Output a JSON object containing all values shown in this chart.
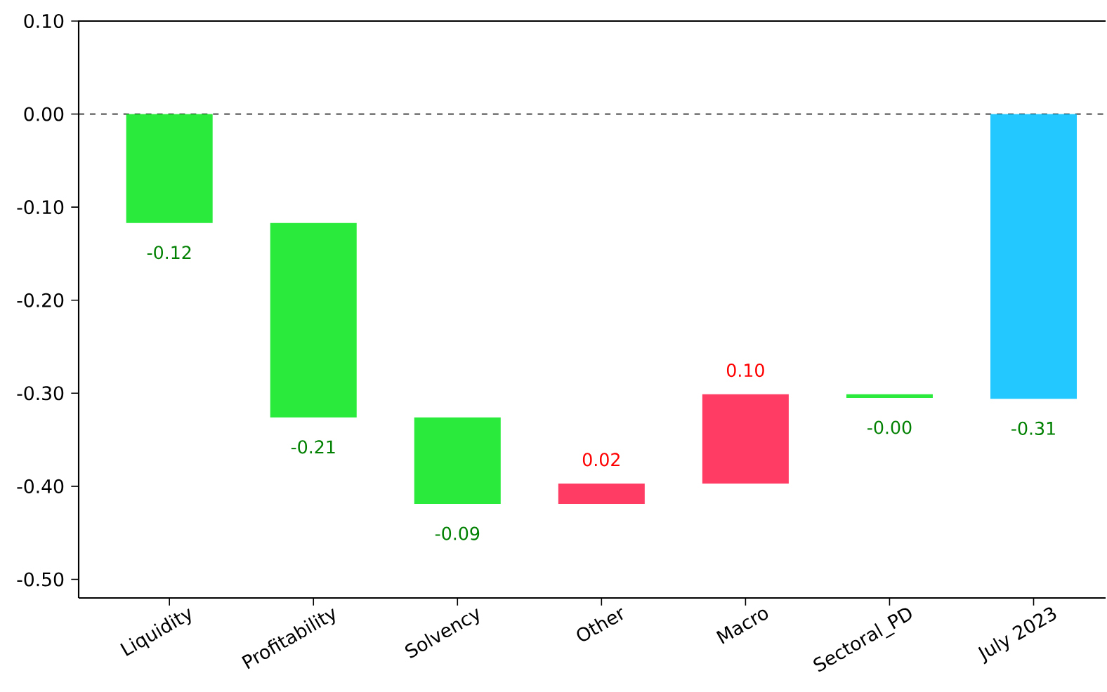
{
  "chart_data": {
    "type": "bar",
    "categories": [
      "Liquidity",
      "Profitability",
      "Solvency",
      "Other",
      "Macro",
      "Sectoral_PD",
      "July 2023"
    ],
    "values": [
      -0.117,
      -0.209,
      -0.093,
      0.022,
      0.096,
      -0.004,
      -0.306
    ],
    "base": [
      0,
      -0.117,
      -0.326,
      -0.419,
      -0.397,
      -0.301,
      0
    ],
    "colors": [
      "#2aeb3c",
      "#2aeb3c",
      "#2aeb3c",
      "#ff3d64",
      "#ff3d64",
      "#2aeb3c",
      "#22c8ff"
    ],
    "value_labels": [
      "-0.12",
      "-0.21",
      "-0.09",
      "0.02",
      "0.10",
      "-0.00",
      "-0.31"
    ],
    "ylim": [
      -0.52,
      0.1
    ],
    "yticks": [
      {
        "value": 0.1,
        "label": "0.10"
      },
      {
        "value": 0,
        "label": "0.00"
      },
      {
        "value": -0.1,
        "label": "-0.10"
      },
      {
        "value": -0.2,
        "label": "-0.20"
      },
      {
        "value": -0.3,
        "label": "-0.30"
      },
      {
        "value": -0.4,
        "label": "-0.40"
      },
      {
        "value": -0.5,
        "label": "-0.50"
      }
    ],
    "ref_lines": [
      {
        "axis": "y",
        "value": 0,
        "color": "#000000",
        "line_style": "dashed"
      }
    ]
  }
}
